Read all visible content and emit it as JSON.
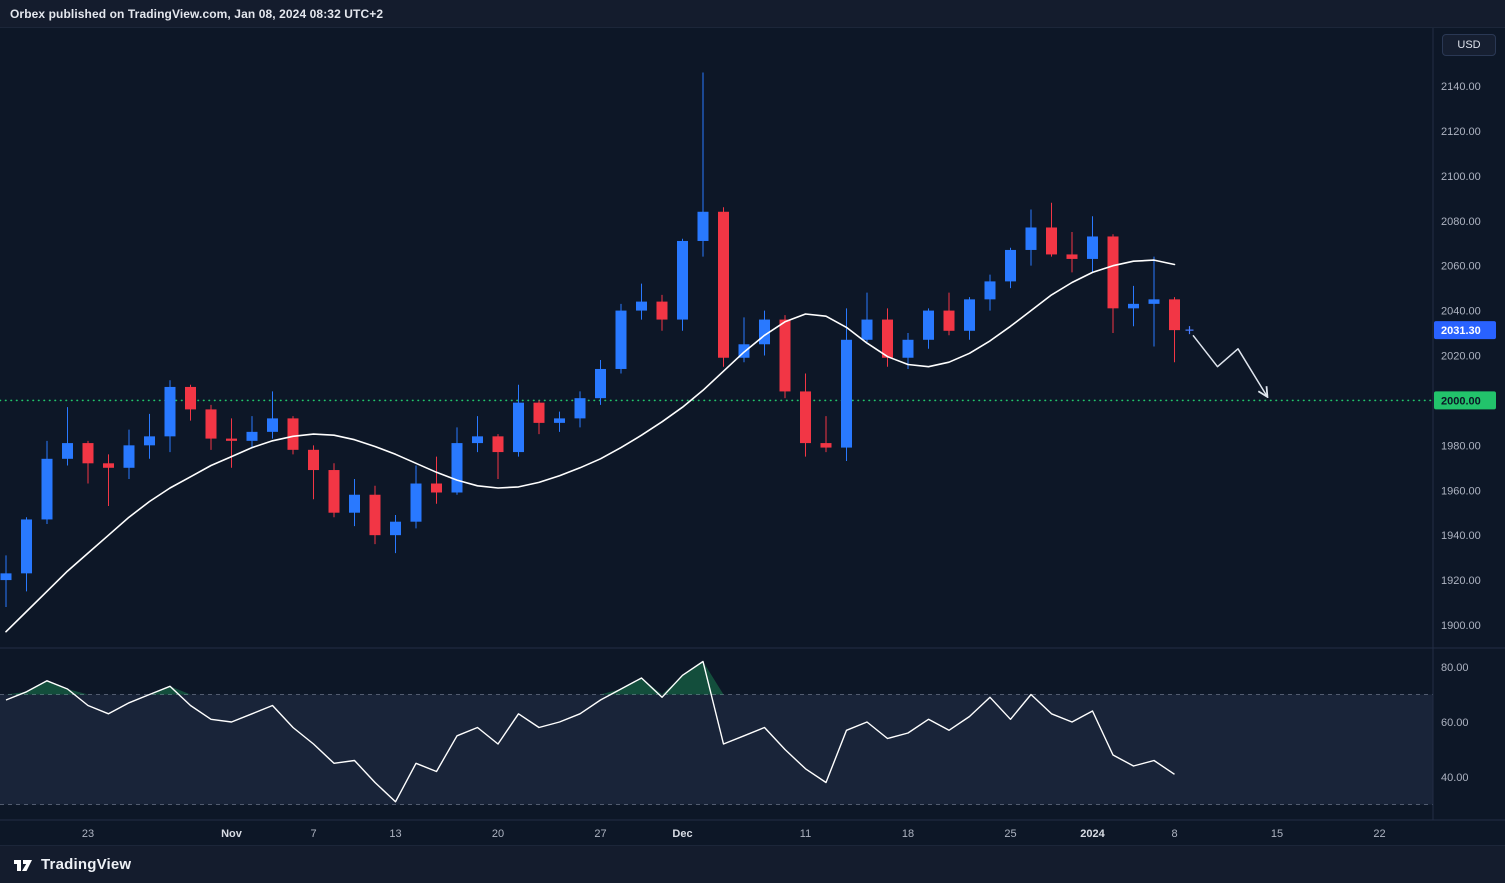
{
  "header": {
    "attribution": "Orbex published on TradingView.com, Jan 08, 2024 08:32 UTC+2"
  },
  "axis": {
    "currency": "USD"
  },
  "footer": {
    "logo_text": "TradingView"
  },
  "chart_data": {
    "type": "candlestick",
    "title": "",
    "price_axis": {
      "min": 1900,
      "max": 2140,
      "step": 20,
      "tick_format": "0.00"
    },
    "current_price": {
      "value": 2031.3,
      "label": "2031.30",
      "color": "#2962ff",
      "text_color": "#ffffff"
    },
    "level_line": {
      "value": 2000,
      "label": "2000.00",
      "color": "#22c36b",
      "text_color": "#0c1626",
      "style": "dotted"
    },
    "candles": [
      [
        1920,
        1931,
        1908,
        1923
      ],
      [
        1923,
        1948,
        1915,
        1947
      ],
      [
        1947,
        1982,
        1945,
        1974
      ],
      [
        1974,
        1997,
        1971,
        1981
      ],
      [
        1981,
        1982,
        1963,
        1972
      ],
      [
        1972,
        1976,
        1953,
        1970
      ],
      [
        1970,
        1987,
        1965,
        1980
      ],
      [
        1980,
        1994,
        1974,
        1984
      ],
      [
        1984,
        2009,
        1977,
        2006
      ],
      [
        2006,
        2007,
        1991,
        1996
      ],
      [
        1996,
        1998,
        1978,
        1983
      ],
      [
        1983,
        1992,
        1970,
        1982
      ],
      [
        1982,
        1993,
        1979,
        1986
      ],
      [
        1986,
        2004,
        1983,
        1992
      ],
      [
        1992,
        1993,
        1976,
        1978
      ],
      [
        1978,
        1980,
        1956,
        1969
      ],
      [
        1969,
        1972,
        1948,
        1950
      ],
      [
        1950,
        1965,
        1944,
        1958
      ],
      [
        1958,
        1962,
        1936,
        1940
      ],
      [
        1940,
        1949,
        1932,
        1946
      ],
      [
        1946,
        1971,
        1943,
        1963
      ],
      [
        1963,
        1975,
        1954,
        1959
      ],
      [
        1959,
        1988,
        1958,
        1981
      ],
      [
        1981,
        1993,
        1977,
        1984
      ],
      [
        1984,
        1985,
        1965,
        1977
      ],
      [
        1977,
        2007,
        1975,
        1999
      ],
      [
        1999,
        2000,
        1985,
        1990
      ],
      [
        1990,
        1995,
        1986,
        1992
      ],
      [
        1992,
        2004,
        1988,
        2001
      ],
      [
        2001,
        2018,
        1998,
        2014
      ],
      [
        2014,
        2043,
        2012,
        2040
      ],
      [
        2040,
        2052,
        2036,
        2044
      ],
      [
        2044,
        2047,
        2031,
        2036
      ],
      [
        2036,
        2072,
        2031,
        2071
      ],
      [
        2071,
        2146,
        2064,
        2084
      ],
      [
        2084,
        2086,
        2015,
        2019
      ],
      [
        2019,
        2037,
        2017,
        2025
      ],
      [
        2025,
        2040,
        2020,
        2036
      ],
      [
        2036,
        2038,
        2001,
        2004
      ],
      [
        2004,
        2012,
        1975,
        1981
      ],
      [
        1981,
        1993,
        1977,
        1979
      ],
      [
        1979,
        2041,
        1973,
        2027
      ],
      [
        2027,
        2048,
        2026,
        2036
      ],
      [
        2036,
        2041,
        2015,
        2019
      ],
      [
        2019,
        2030,
        2014,
        2027
      ],
      [
        2027,
        2041,
        2023,
        2040
      ],
      [
        2040,
        2048,
        2029,
        2031
      ],
      [
        2031,
        2046,
        2027,
        2045
      ],
      [
        2045,
        2056,
        2040,
        2053
      ],
      [
        2053,
        2068,
        2050,
        2067
      ],
      [
        2067,
        2085,
        2060,
        2077
      ],
      [
        2077,
        2088,
        2064,
        2065
      ],
      [
        2065,
        2075,
        2057,
        2063
      ],
      [
        2063,
        2082,
        2057,
        2073
      ],
      [
        2073,
        2074,
        2030,
        2041
      ],
      [
        2041,
        2051,
        2033,
        2043
      ],
      [
        2043,
        2064,
        2024,
        2045
      ],
      [
        2045,
        2046,
        2017,
        2031.3
      ]
    ],
    "ma_line": {
      "color": "#ffffff",
      "values": [
        1897,
        1906,
        1915,
        1924,
        1932,
        1940,
        1948,
        1955,
        1961,
        1966,
        1971,
        1975,
        1979,
        1982,
        1984,
        1985,
        1984.5,
        1982.5,
        1979.5,
        1976,
        1972,
        1968,
        1964.5,
        1962,
        1961,
        1961.5,
        1963.5,
        1966.5,
        1970,
        1974,
        1979,
        1984.5,
        1990.5,
        1997,
        2004.5,
        2013,
        2021.5,
        2029,
        2035,
        2038.5,
        2037.5,
        2032.5,
        2025.5,
        2019.5,
        2016,
        2015,
        2017,
        2021,
        2026.5,
        2033,
        2040,
        2047,
        2052.5,
        2057,
        2060,
        2062,
        2062.5,
        2060.5
      ]
    },
    "rsi": {
      "color": "#ffffff",
      "upper": 70,
      "lower": 30,
      "axis_labels": [
        "80.00",
        "60.00",
        "40.00"
      ],
      "values": [
        68,
        71,
        75,
        72,
        66,
        63,
        67,
        70,
        73,
        66,
        61,
        60,
        63,
        66,
        58,
        52,
        45,
        46,
        38,
        31,
        45,
        42,
        55,
        58,
        52,
        63,
        58,
        60,
        63,
        68,
        72,
        76,
        69,
        77,
        82,
        52,
        55,
        58,
        50,
        43,
        38,
        57,
        60,
        54,
        56,
        61,
        57,
        62,
        69,
        61,
        70,
        63,
        60,
        64,
        48,
        44,
        46,
        41
      ]
    },
    "time_axis": [
      {
        "label": "23",
        "idx": 4
      },
      {
        "label": "Nov",
        "idx": 11,
        "major": true
      },
      {
        "label": "7",
        "idx": 15
      },
      {
        "label": "13",
        "idx": 19
      },
      {
        "label": "20",
        "idx": 24
      },
      {
        "label": "27",
        "idx": 29
      },
      {
        "label": "Dec",
        "idx": 33,
        "major": true
      },
      {
        "label": "11",
        "idx": 39
      },
      {
        "label": "18",
        "idx": 44
      },
      {
        "label": "25",
        "idx": 49
      },
      {
        "label": "2024",
        "idx": 53,
        "major": true
      },
      {
        "label": "8",
        "idx": 57
      },
      {
        "label": "15",
        "idx": 62
      },
      {
        "label": "22",
        "idx": 67
      }
    ],
    "projection_arrow": {
      "color": "#dfe5ee",
      "points": [
        [
          57.9,
          2029
        ],
        [
          59.1,
          2015
        ],
        [
          60.1,
          2023
        ],
        [
          61.5,
          2002
        ]
      ]
    },
    "colors": {
      "background": "#0d1727",
      "up": "#2979ff",
      "down": "#f23645",
      "axis_text": "#aeb4c2",
      "axis_text_major": "#d8dce4",
      "separator": "#222d45",
      "rsi_band": "rgba(116,134,191,0.12)",
      "rsi_level": "rgba(160,170,190,0.45)",
      "rsi_overbought": "rgba(34,195,107,0.32)",
      "last_price_marker": "#4a7dff"
    }
  }
}
